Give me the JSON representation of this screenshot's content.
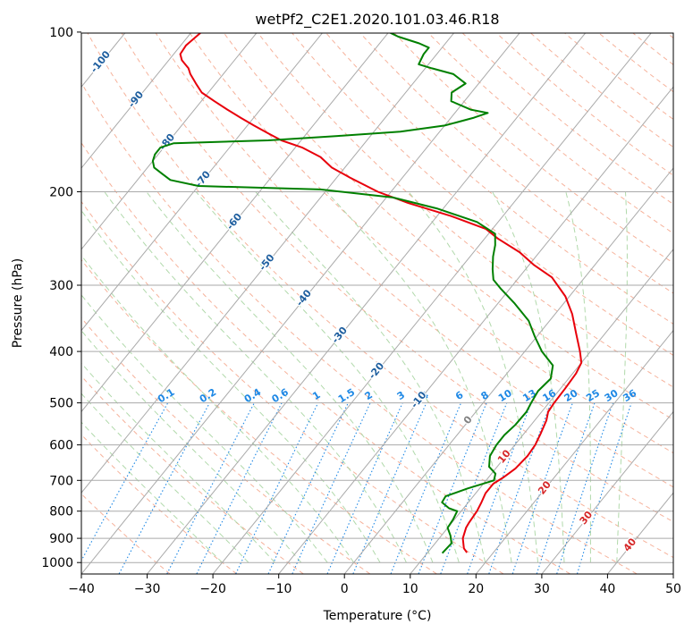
{
  "chart_data": {
    "type": "line",
    "subtype": "skew-t log-p",
    "title": "wetPf2_C2E1.2020.101.03.46.R18",
    "xlabel": "Temperature (°C)",
    "ylabel": "Pressure (hPa)",
    "xlim": [
      -40,
      50
    ],
    "ylim": [
      1050,
      100
    ],
    "x_ticks": [
      -40,
      -30,
      -20,
      -10,
      0,
      10,
      20,
      30,
      40,
      50
    ],
    "x_tick_labels": [
      "−40",
      "−30",
      "−20",
      "−10",
      "0",
      "10",
      "20",
      "30",
      "40",
      "50"
    ],
    "y_ticks": [
      1000,
      900,
      800,
      700,
      600,
      500,
      400,
      300,
      200,
      100
    ],
    "y_tick_labels": [
      "1000",
      "900",
      "800",
      "700",
      "600",
      "500",
      "400",
      "300",
      "200",
      "100"
    ],
    "grid": true,
    "series": [
      {
        "name": "temperature",
        "color": "#e8000b",
        "points": [
          [
            16,
            958
          ],
          [
            15,
            940
          ],
          [
            13.6,
            900
          ],
          [
            12.8,
            860
          ],
          [
            12.6,
            840
          ],
          [
            12.4,
            800
          ],
          [
            12,
            770
          ],
          [
            11.5,
            740
          ],
          [
            11.5,
            710
          ],
          [
            12.3,
            690
          ],
          [
            13,
            665
          ],
          [
            13.3,
            630
          ],
          [
            13.1,
            600
          ],
          [
            12.5,
            570
          ],
          [
            11.8,
            540
          ],
          [
            11,
            520
          ],
          [
            10.8,
            500
          ],
          [
            10.7,
            470
          ],
          [
            10.5,
            440
          ],
          [
            10,
            420
          ],
          [
            8.4,
            400
          ],
          [
            5.6,
            370
          ],
          [
            2.6,
            340
          ],
          [
            -0.6,
            315
          ],
          [
            -5,
            290
          ],
          [
            -9.2,
            275
          ],
          [
            -13,
            260
          ],
          [
            -18,
            245
          ],
          [
            -21,
            235
          ],
          [
            -28,
            222
          ],
          [
            -36,
            210
          ],
          [
            -42,
            200
          ],
          [
            -48,
            188
          ],
          [
            -52,
            180
          ],
          [
            -55,
            172
          ],
          [
            -59,
            165
          ],
          [
            -63,
            160
          ],
          [
            -66,
            155
          ],
          [
            -69,
            150
          ],
          [
            -72,
            145
          ],
          [
            -75,
            140
          ],
          [
            -78,
            135
          ],
          [
            -81,
            130
          ],
          [
            -83,
            125
          ],
          [
            -85,
            120
          ],
          [
            -86,
            117
          ],
          [
            -88,
            113
          ],
          [
            -89,
            110
          ],
          [
            -89.2,
            106
          ],
          [
            -88.5,
            100
          ]
        ]
      },
      {
        "name": "dewpoint",
        "color": "#008000",
        "points": [
          [
            12.3,
            960
          ],
          [
            12.5,
            920
          ],
          [
            11.4,
            890
          ],
          [
            10,
            860
          ],
          [
            9.8,
            830
          ],
          [
            9.4,
            800
          ],
          [
            7.8,
            790
          ],
          [
            6,
            770
          ],
          [
            5.8,
            750
          ],
          [
            8.2,
            725
          ],
          [
            11.2,
            700
          ],
          [
            10.6,
            680
          ],
          [
            8.8,
            660
          ],
          [
            7.6,
            630
          ],
          [
            7.2,
            600
          ],
          [
            7.2,
            575
          ],
          [
            7.6,
            550
          ],
          [
            7.7,
            520
          ],
          [
            7.3,
            500
          ],
          [
            6.9,
            475
          ],
          [
            7.3,
            450
          ],
          [
            6,
            425
          ],
          [
            2.6,
            400
          ],
          [
            -0.3,
            375
          ],
          [
            -3.2,
            350
          ],
          [
            -7.4,
            325
          ],
          [
            -11.3,
            305
          ],
          [
            -13.6,
            293
          ],
          [
            -15,
            280
          ],
          [
            -16.5,
            265
          ],
          [
            -17.6,
            252
          ],
          [
            -19,
            240
          ],
          [
            -23.2,
            228
          ],
          [
            -31,
            215
          ],
          [
            -39,
            205
          ],
          [
            -51,
            198
          ],
          [
            -70,
            195
          ],
          [
            -75,
            190
          ],
          [
            -77,
            185
          ],
          [
            -79,
            180
          ],
          [
            -80,
            175
          ],
          [
            -80.5,
            170
          ],
          [
            -80.5,
            165
          ],
          [
            -79,
            162
          ],
          [
            -65,
            160
          ],
          [
            -55,
            157
          ],
          [
            -46,
            154
          ],
          [
            -40,
            150
          ],
          [
            -36.5,
            145
          ],
          [
            -35,
            142
          ],
          [
            -38,
            140
          ],
          [
            -42,
            135
          ],
          [
            -43,
            130
          ],
          [
            -42,
            125
          ],
          [
            -45,
            120
          ],
          [
            -49,
            117
          ],
          [
            -51.5,
            115
          ],
          [
            -52,
            110
          ],
          [
            -52,
            107
          ],
          [
            -54,
            105
          ],
          [
            -58,
            102
          ],
          [
            -60,
            100
          ]
        ]
      }
    ],
    "isotherm_labels": [
      {
        "t": -100,
        "label": "-100"
      },
      {
        "t": -90,
        "label": "-90"
      },
      {
        "t": -80,
        "label": "-80"
      },
      {
        "t": -70,
        "label": "-70"
      },
      {
        "t": -60,
        "label": "-60"
      },
      {
        "t": -50,
        "label": "-50"
      },
      {
        "t": -40,
        "label": "-40"
      },
      {
        "t": -30,
        "label": "-30"
      },
      {
        "t": -20,
        "label": "-20"
      },
      {
        "t": -10,
        "label": "-10"
      },
      {
        "t": 0,
        "label": "0"
      },
      {
        "t": 10,
        "label": "10"
      },
      {
        "t": 20,
        "label": "20"
      },
      {
        "t": 30,
        "label": "30"
      },
      {
        "t": 40,
        "label": "40"
      }
    ],
    "mixing_ratio_labels": [
      "0.1",
      "0.2",
      "0.4",
      "0.6",
      "1",
      "1.5",
      "2",
      "3",
      "4",
      "6",
      "8",
      "10",
      "13",
      "16",
      "20",
      "25",
      "30",
      "36"
    ]
  },
  "colors": {
    "temperature": "#e8000b",
    "dewpoint": "#008000",
    "isotherm": "#aaaaaa",
    "isotherm_label_cold": "#1f5f9f",
    "isotherm_label_warm": "#d62728",
    "isotherm_label_zero": "#808080",
    "dry_adiabat": "#f4a58a",
    "moist_adiabat": "#a8d5a2",
    "mixing_ratio": "#1e88e5",
    "frame": "#000000"
  }
}
